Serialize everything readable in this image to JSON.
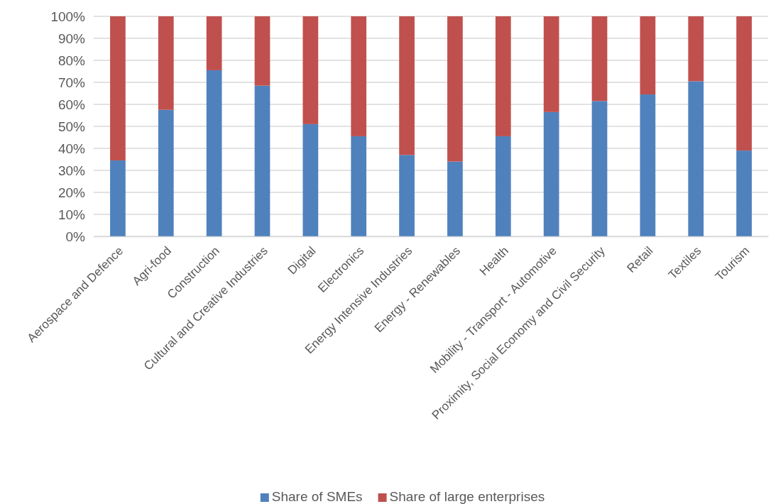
{
  "chart_data": {
    "type": "bar",
    "stacked": true,
    "categories": [
      "Aerospace and Defence",
      "Agri-food",
      "Construction",
      "Cultural and Creative Industries",
      "Digital",
      "Electronics",
      "Energy Intensive Industries",
      "Energy - Renewables",
      "Health",
      "Mobility - Transport - Automotive",
      "Proximity, Social Economy and Civil Security",
      "Retail",
      "Textiles",
      "Tourism"
    ],
    "series": [
      {
        "name": "Share of SMEs",
        "color": "#4f81bd",
        "values": [
          34.5,
          57.5,
          75.5,
          68.5,
          51,
          45.5,
          37,
          34,
          45.5,
          56.5,
          61.5,
          64.5,
          70.5,
          39
        ]
      },
      {
        "name": "Share of large enterprises",
        "color": "#c0504d",
        "values": [
          65.5,
          42.5,
          24.5,
          31.5,
          49,
          54.5,
          63,
          66,
          54.5,
          43.5,
          38.5,
          35.5,
          29.5,
          61
        ]
      }
    ],
    "ylim": [
      0,
      100
    ],
    "yticks": [
      {
        "value": 0,
        "label": "0%"
      },
      {
        "value": 10,
        "label": "10%"
      },
      {
        "value": 20,
        "label": "20%"
      },
      {
        "value": 30,
        "label": "30%"
      },
      {
        "value": 40,
        "label": "40%"
      },
      {
        "value": 50,
        "label": "50%"
      },
      {
        "value": 60,
        "label": "60%"
      },
      {
        "value": 70,
        "label": "70%"
      },
      {
        "value": 80,
        "label": "80%"
      },
      {
        "value": 90,
        "label": "90%"
      },
      {
        "value": 100,
        "label": "100%"
      }
    ],
    "grid": "y",
    "legend": "bottom"
  }
}
